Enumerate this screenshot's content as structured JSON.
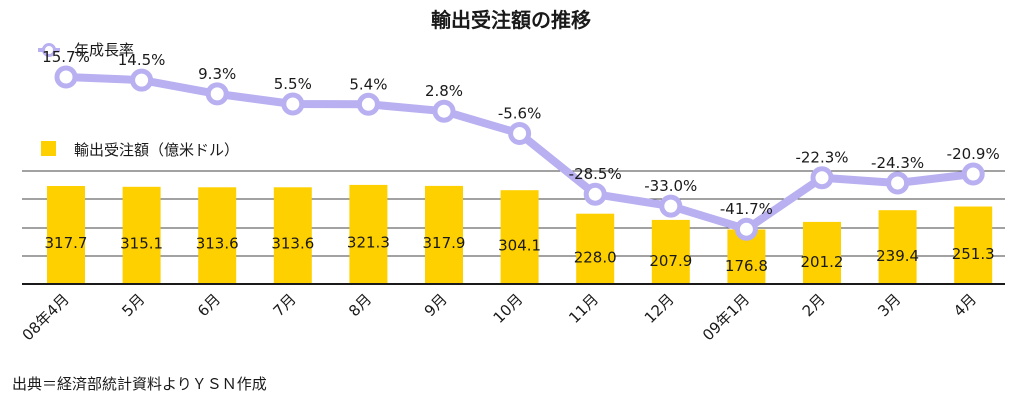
{
  "chart_data": {
    "type": "bar",
    "title": "輸出受注額の推移",
    "categories": [
      "08年4月",
      "5月",
      "6月",
      "7月",
      "8月",
      "9月",
      "10月",
      "11月",
      "12月",
      "09年1月",
      "2月",
      "3月",
      "4月"
    ],
    "series": [
      {
        "name": "輸出受注額（億米ドル）",
        "type": "bar",
        "values": [
          317.7,
          315.1,
          313.6,
          313.6,
          321.3,
          317.9,
          304.1,
          228.0,
          207.9,
          176.8,
          201.2,
          239.4,
          251.3
        ],
        "labels": [
          "317.7",
          "315.1",
          "313.6",
          "313.6",
          "321.3",
          "317.9",
          "304.1",
          "228.0",
          "207.9",
          "176.8",
          "201.2",
          "239.4",
          "251.3"
        ]
      },
      {
        "name": "年成長率",
        "type": "line",
        "values": [
          15.7,
          14.5,
          9.3,
          5.5,
          5.4,
          2.8,
          -5.6,
          -28.5,
          -33.0,
          -41.7,
          -22.3,
          -24.3,
          -20.9
        ],
        "labels": [
          "15.7%",
          "14.5%",
          "9.3%",
          "5.5%",
          "5.4%",
          "2.8%",
          "-5.6%",
          "-28.5%",
          "-33.0%",
          "-41.7%",
          "-22.3%",
          "-24.3%",
          "-20.9%"
        ]
      }
    ],
    "legend_position": "top-left",
    "grid": true,
    "colors": {
      "bar": "#ffd000",
      "line": "#b8b0f0",
      "marker_fill": "#ffffff",
      "axis": "#1a1a1a",
      "grid": "#444444"
    }
  },
  "source_note": "出典＝経済部統計資料よりＹＳＮ作成"
}
